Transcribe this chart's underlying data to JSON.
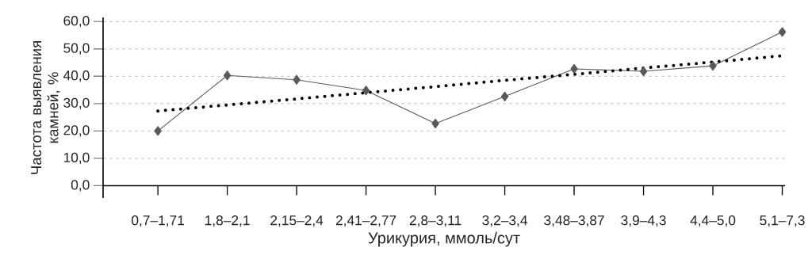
{
  "chart_data": {
    "type": "line",
    "xlabel": "Урикурия, ммоль/сут",
    "ylabel": "Частота выявления камней, %",
    "categories": [
      "0,7–1,71",
      "1,8–2,1",
      "2,15–2,4",
      "2,41–2,77",
      "2,8–3,11",
      "3,2–3,4",
      "3,48–3,87",
      "3,9–4,3",
      "4,4–5,0",
      "5,1–7,3"
    ],
    "series": [
      {
        "color": "#595959",
        "marker": "diamond",
        "line_style": "solid",
        "values": [
          20.0,
          40.3,
          38.7,
          34.8,
          22.7,
          32.6,
          42.7,
          41.8,
          43.8,
          56.2
        ]
      },
      {
        "color": "#000000",
        "marker": "none",
        "line_style": "dotted",
        "values": [
          27.3,
          29.5,
          31.7,
          34.0,
          36.2,
          38.5,
          40.7,
          43.0,
          45.2,
          47.5
        ]
      }
    ],
    "ylim": [
      -4.5,
      61.5
    ],
    "yticks": [
      {
        "value": 0,
        "label": "0,0"
      },
      {
        "value": 10,
        "label": "10,0"
      },
      {
        "value": 20,
        "label": "20,0"
      },
      {
        "value": 30,
        "label": "30,0"
      },
      {
        "value": 40,
        "label": "40,0"
      },
      {
        "value": 50,
        "label": "50,0"
      },
      {
        "value": 60,
        "label": "60,0"
      }
    ],
    "grid": "y",
    "legend": false
  }
}
